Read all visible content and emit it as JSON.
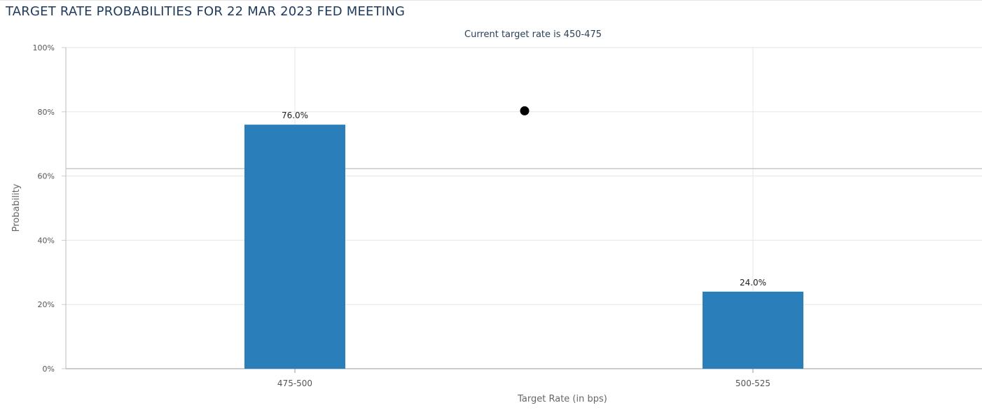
{
  "page": {
    "title": "TARGET RATE PROBABILITIES FOR 22 MAR 2023 FED MEETING"
  },
  "chart_data": {
    "type": "bar",
    "title": "",
    "subtitle": "Current target rate is 450-475",
    "xlabel": "Target Rate (in bps)",
    "ylabel": "Probability",
    "categories": [
      "475-500",
      "500-525"
    ],
    "values": [
      76.0,
      24.0
    ],
    "data_labels": [
      "76.0%",
      "24.0%"
    ],
    "ylim": [
      0,
      100
    ],
    "yticks": [
      0,
      20,
      40,
      60,
      80,
      100
    ],
    "ytick_labels": [
      "0%",
      "20%",
      "40%",
      "60%",
      "80%",
      "100%"
    ],
    "grid": true,
    "bar_color": "#2a7fba",
    "marker": {
      "x_between_categories": 0.5,
      "y": 80.3,
      "color": "#000000"
    },
    "reference_line": {
      "y": 62.3,
      "color": "#c8c8c8"
    }
  }
}
